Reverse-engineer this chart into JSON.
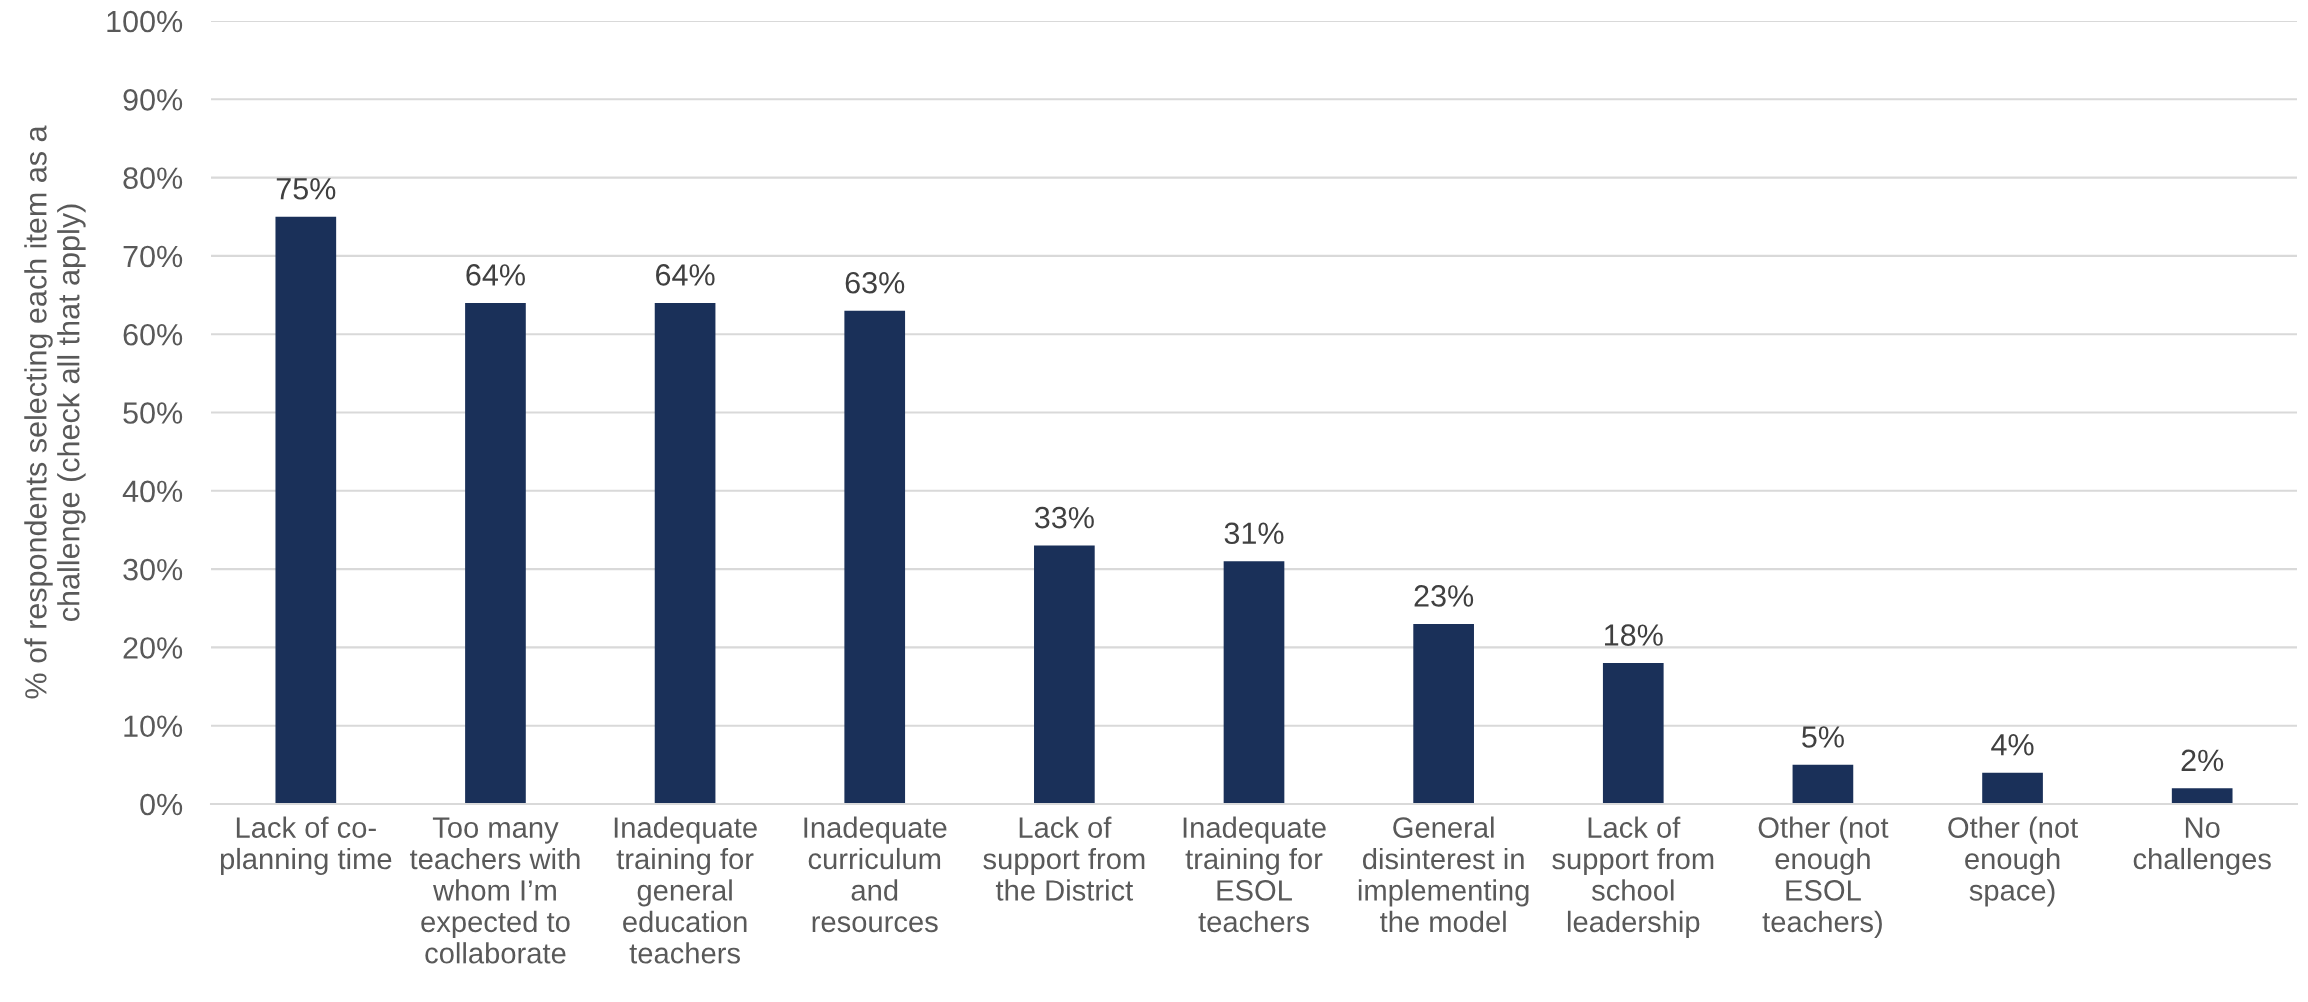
{
  "chart_data": {
    "type": "bar",
    "ylabel": "% of respondents selecting each item as a\nchallenge (check all that apply)",
    "categories": [
      "Lack of co-\nplanning time",
      "Too many\nteachers with\nwhom I’m\nexpected to\ncollaborate",
      "Inadequate\ntraining for\ngeneral\neducation\nteachers",
      "Inadequate\ncurriculum\nand\nresources",
      "Lack of\nsupport from\nthe District",
      "Inadequate\ntraining for\nESOL\nteachers",
      "General\ndisinterest in\nimplementing\nthe model",
      "Lack of\nsupport from\nschool\nleadership",
      "Other (not\nenough\nESOL\nteachers)",
      "Other (not\nenough\nspace)",
      "No\nchallenges"
    ],
    "values": [
      75,
      64,
      64,
      63,
      33,
      31,
      23,
      18,
      5,
      4,
      2
    ],
    "value_labels": [
      "75%",
      "64%",
      "64%",
      "63%",
      "33%",
      "31%",
      "23%",
      "18%",
      "5%",
      "4%",
      "2%"
    ],
    "color": "#1a3059",
    "ylim": [
      0,
      100
    ],
    "yticks": [
      {
        "value": 0,
        "label": "0%"
      },
      {
        "value": 10,
        "label": "10%"
      },
      {
        "value": 20,
        "label": "20%"
      },
      {
        "value": 30,
        "label": "30%"
      },
      {
        "value": 40,
        "label": "40%"
      },
      {
        "value": 50,
        "label": "50%"
      },
      {
        "value": 60,
        "label": "60%"
      },
      {
        "value": 70,
        "label": "70%"
      },
      {
        "value": 80,
        "label": "80%"
      },
      {
        "value": 90,
        "label": "90%"
      },
      {
        "value": 100,
        "label": "100%"
      }
    ],
    "grid": "y"
  }
}
